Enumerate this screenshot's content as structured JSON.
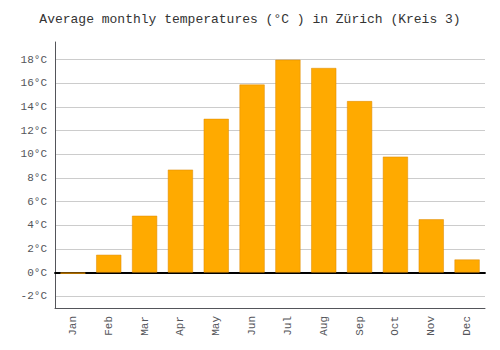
{
  "chart_data": {
    "type": "bar",
    "title": "Average monthly temperatures (°C ) in Zürich (Kreis 3)",
    "categories": [
      "Jan",
      "Feb",
      "Mar",
      "Apr",
      "May",
      "Jun",
      "Jul",
      "Aug",
      "Sep",
      "Oct",
      "Nov",
      "Dec"
    ],
    "values": [
      -0.1,
      1.5,
      4.8,
      8.7,
      13.0,
      15.9,
      18.0,
      17.3,
      14.5,
      9.8,
      4.5,
      1.1
    ],
    "color": "#FFAA00",
    "ylim": [
      -3,
      19.5
    ],
    "yticks": [
      {
        "value": -2,
        "label": "-2°C"
      },
      {
        "value": 0,
        "label": "0°C"
      },
      {
        "value": 2,
        "label": "2°C"
      },
      {
        "value": 4,
        "label": "4°C"
      },
      {
        "value": 6,
        "label": "6°C"
      },
      {
        "value": 8,
        "label": "8°C"
      },
      {
        "value": 10,
        "label": "10°C"
      },
      {
        "value": 12,
        "label": "12°C"
      },
      {
        "value": 14,
        "label": "14°C"
      },
      {
        "value": 16,
        "label": "16°C"
      },
      {
        "value": 18,
        "label": "18°C"
      }
    ],
    "grid": true
  }
}
